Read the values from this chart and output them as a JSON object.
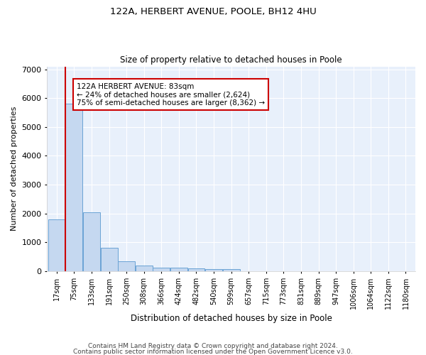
{
  "title1": "122A, HERBERT AVENUE, POOLE, BH12 4HU",
  "title2": "Size of property relative to detached houses in Poole",
  "xlabel": "Distribution of detached houses by size in Poole",
  "ylabel": "Number of detached properties",
  "bar_color": "#c5d8f0",
  "bar_edge_color": "#6aa3d4",
  "background_color": "#e8f0fb",
  "grid_color": "#ffffff",
  "categories": [
    "17sqm",
    "75sqm",
    "133sqm",
    "191sqm",
    "250sqm",
    "308sqm",
    "366sqm",
    "424sqm",
    "482sqm",
    "540sqm",
    "599sqm",
    "657sqm",
    "715sqm",
    "773sqm",
    "831sqm",
    "889sqm",
    "947sqm",
    "1006sqm",
    "1064sqm",
    "1122sqm",
    "1180sqm"
  ],
  "values": [
    1800,
    5800,
    2050,
    800,
    340,
    190,
    120,
    110,
    100,
    80,
    75,
    5,
    5,
    5,
    5,
    5,
    5,
    5,
    5,
    5,
    5
  ],
  "property_line_color": "#cc0000",
  "property_line_x": 0.5,
  "annotation_text": "122A HERBERT AVENUE: 83sqm\n← 24% of detached houses are smaller (2,624)\n75% of semi-detached houses are larger (8,362) →",
  "annotation_box_color": "#cc0000",
  "ylim": [
    0,
    7100
  ],
  "yticks": [
    0,
    1000,
    2000,
    3000,
    4000,
    5000,
    6000,
    7000
  ],
  "footer1": "Contains HM Land Registry data © Crown copyright and database right 2024.",
  "footer2": "Contains public sector information licensed under the Open Government Licence v3.0."
}
